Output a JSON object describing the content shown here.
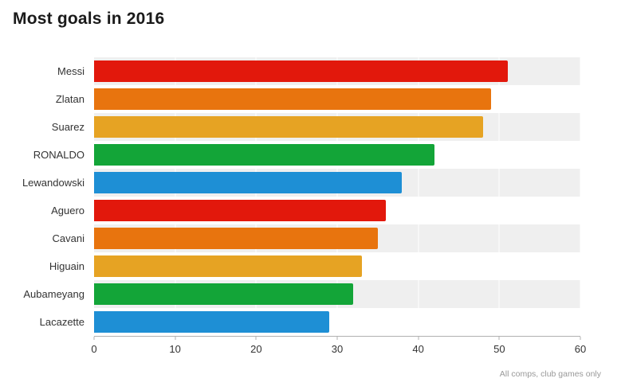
{
  "chart_data": {
    "type": "bar",
    "orientation": "horizontal",
    "title": "Most goals in 2016",
    "categories": [
      "Messi",
      "Zlatan",
      "Suarez",
      "RONALDO",
      "Lewandowski",
      "Aguero",
      "Cavani",
      "Higuain",
      "Aubameyang",
      "Lacazette"
    ],
    "values": [
      51,
      49,
      48,
      42,
      38,
      36,
      35,
      33,
      32,
      29
    ],
    "xlabel": "",
    "ylabel": "",
    "xlim": [
      0,
      60
    ],
    "x_ticks": [
      0,
      10,
      20,
      30,
      40,
      50,
      60
    ],
    "bar_colors": [
      "#e2180c",
      "#e8740e",
      "#e6a323",
      "#13a538",
      "#1e8fd5",
      "#e2180c",
      "#e8740e",
      "#e6a323",
      "#13a538",
      "#1e8fd5"
    ],
    "row_stripe_color": "#efefef",
    "grid": "on",
    "legend": "none",
    "note": "All comps, club games only"
  }
}
